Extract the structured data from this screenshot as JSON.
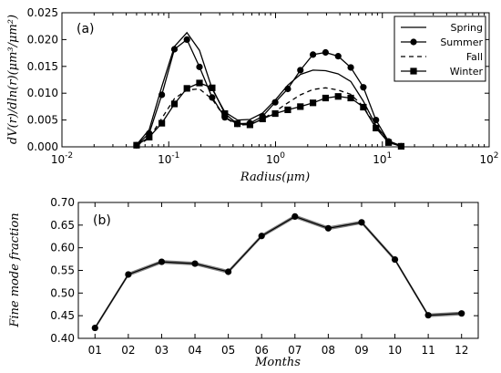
{
  "chart_data": [
    {
      "type": "line",
      "panel_label": "(a)",
      "title": "",
      "xlabel": "Radius(μm)",
      "ylabel": "dV(r)/dln(r)(μm³/μm²)",
      "xscale": "log",
      "xlim": [
        0.01,
        100
      ],
      "ylim": [
        0,
        0.025
      ],
      "x_ticks": [
        {
          "value": 0.01,
          "base": "10",
          "exp": "-2"
        },
        {
          "value": 0.1,
          "base": "10",
          "exp": "-1"
        },
        {
          "value": 1,
          "base": "10",
          "exp": "0"
        },
        {
          "value": 10,
          "base": "10",
          "exp": "1"
        },
        {
          "value": 100,
          "base": "10",
          "exp": "2"
        }
      ],
      "y_ticks": [
        "0.000",
        "0.005",
        "0.010",
        "0.015",
        "0.020",
        "0.025"
      ],
      "legend_position": "top-right",
      "x": [
        0.05,
        0.0656,
        0.0861,
        0.113,
        0.148,
        0.194,
        0.255,
        0.335,
        0.439,
        0.576,
        0.756,
        0.992,
        1.302,
        1.708,
        2.241,
        2.94,
        3.857,
        5.06,
        6.638,
        8.709,
        11.43,
        15.0
      ],
      "series": [
        {
          "name": "Spring",
          "style": "solid",
          "values": [
            0.0004,
            0.0032,
            0.0112,
            0.0187,
            0.0213,
            0.018,
            0.0108,
            0.0065,
            0.005,
            0.0051,
            0.0063,
            0.0087,
            0.0115,
            0.0135,
            0.0143,
            0.0142,
            0.0136,
            0.0122,
            0.0085,
            0.004,
            0.0011,
            0.0002
          ]
        },
        {
          "name": "Summer",
          "style": "solid-circle",
          "values": [
            0.0003,
            0.0025,
            0.0097,
            0.0182,
            0.02,
            0.0149,
            0.0092,
            0.0055,
            0.0043,
            0.0044,
            0.0057,
            0.0083,
            0.0108,
            0.0143,
            0.0172,
            0.0176,
            0.0169,
            0.0148,
            0.0111,
            0.005,
            0.001,
            0.0001
          ]
        },
        {
          "name": "Fall",
          "style": "dashed",
          "values": [
            0.0002,
            0.0016,
            0.0053,
            0.009,
            0.0106,
            0.0108,
            0.0089,
            0.0055,
            0.004,
            0.0042,
            0.0052,
            0.0066,
            0.0082,
            0.0097,
            0.0107,
            0.011,
            0.0106,
            0.0098,
            0.0075,
            0.0037,
            0.0008,
            0.0001
          ]
        },
        {
          "name": "Winter",
          "style": "solid-square",
          "values": [
            0.0003,
            0.0018,
            0.0044,
            0.008,
            0.0109,
            0.0119,
            0.011,
            0.0062,
            0.0043,
            0.0041,
            0.0052,
            0.0062,
            0.0069,
            0.0075,
            0.0082,
            0.0091,
            0.0094,
            0.0091,
            0.0074,
            0.0035,
            0.0008,
            0.0001
          ]
        }
      ]
    },
    {
      "type": "line",
      "panel_label": "(b)",
      "title": "",
      "xlabel": "Months",
      "ylabel": "Fine mode fraction",
      "ylim": [
        0.4,
        0.7
      ],
      "categories": [
        "01",
        "02",
        "03",
        "04",
        "05",
        "06",
        "07",
        "08",
        "09",
        "10",
        "11",
        "12"
      ],
      "y_ticks": [
        "0.40",
        "0.45",
        "0.50",
        "0.55",
        "0.60",
        "0.65",
        "0.70"
      ],
      "values": [
        0.423,
        0.541,
        0.569,
        0.565,
        0.547,
        0.626,
        0.669,
        0.643,
        0.656,
        0.574,
        0.451,
        0.455
      ],
      "band_halfwidth": 0.004
    }
  ]
}
